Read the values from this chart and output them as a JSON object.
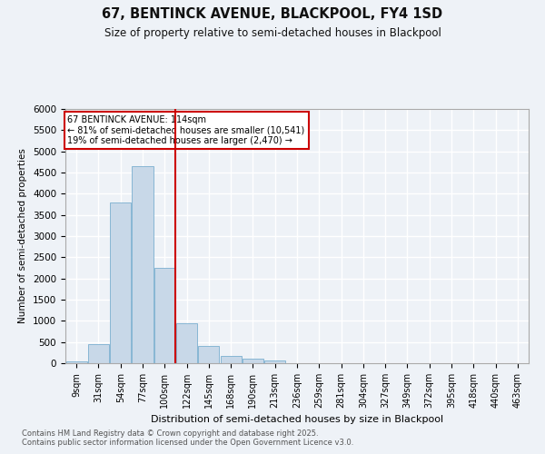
{
  "title1": "67, BENTINCK AVENUE, BLACKPOOL, FY4 1SD",
  "title2": "Size of property relative to semi-detached houses in Blackpool",
  "xlabel": "Distribution of semi-detached houses by size in Blackpool",
  "ylabel": "Number of semi-detached properties",
  "footnote": "Contains HM Land Registry data © Crown copyright and database right 2025.\nContains public sector information licensed under the Open Government Licence v3.0.",
  "bin_labels": [
    "9sqm",
    "31sqm",
    "54sqm",
    "77sqm",
    "100sqm",
    "122sqm",
    "145sqm",
    "168sqm",
    "190sqm",
    "213sqm",
    "236sqm",
    "259sqm",
    "281sqm",
    "304sqm",
    "327sqm",
    "349sqm",
    "372sqm",
    "395sqm",
    "418sqm",
    "440sqm",
    "463sqm"
  ],
  "bar_values": [
    50,
    450,
    3800,
    4650,
    2250,
    950,
    400,
    175,
    100,
    75,
    0,
    0,
    0,
    0,
    0,
    0,
    0,
    0,
    0,
    0,
    0
  ],
  "bar_color": "#c8d8e8",
  "bar_edge_color": "#7aafcf",
  "vline_x_idx": 4.5,
  "vline_color": "#cc0000",
  "annotation_title": "67 BENTINCK AVENUE: 114sqm",
  "annotation_line1": "← 81% of semi-detached houses are smaller (10,541)",
  "annotation_line2": "19% of semi-detached houses are larger (2,470) →",
  "annotation_box_color": "#ffffff",
  "annotation_box_edgecolor": "#cc0000",
  "ylim": [
    0,
    6000
  ],
  "yticks": [
    0,
    500,
    1000,
    1500,
    2000,
    2500,
    3000,
    3500,
    4000,
    4500,
    5000,
    5500,
    6000
  ],
  "bg_color": "#eef2f7",
  "grid_color": "#ffffff"
}
